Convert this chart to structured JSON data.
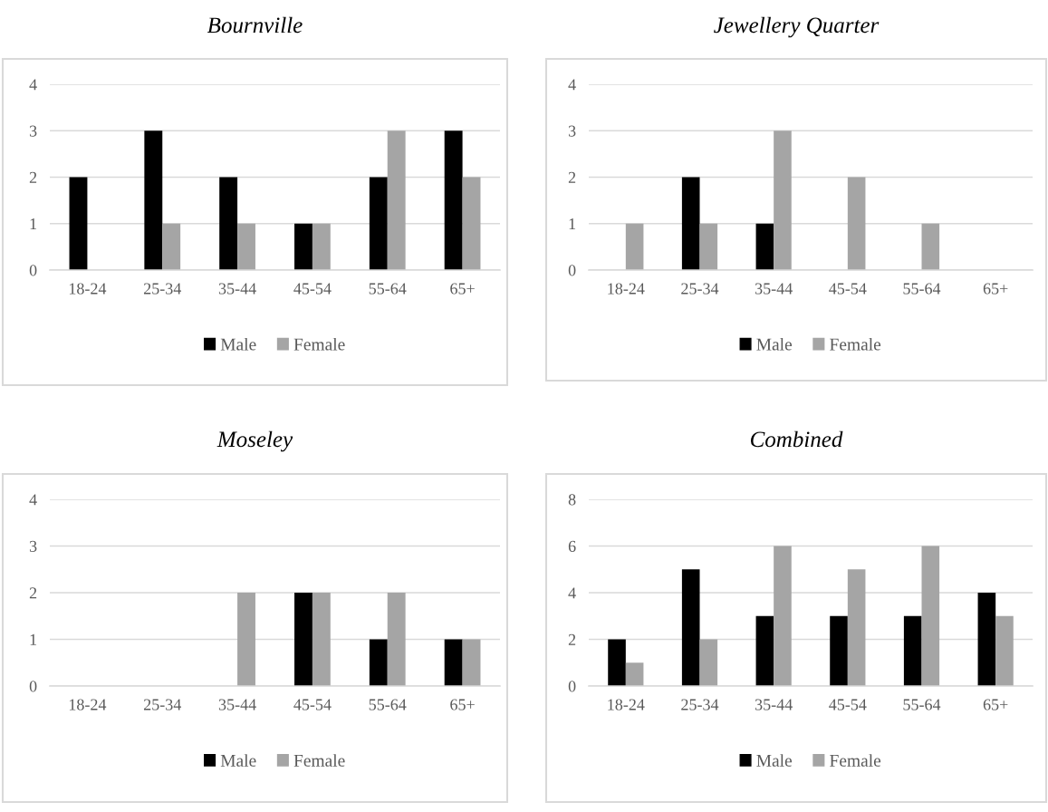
{
  "chart_data": [
    {
      "type": "bar",
      "title": "Bournville",
      "categories": [
        "18-24",
        "25-34",
        "35-44",
        "45-54",
        "55-64",
        "65+"
      ],
      "series": [
        {
          "name": "Male",
          "color": "#000000",
          "values": [
            2,
            3,
            2,
            1,
            2,
            3
          ]
        },
        {
          "name": "Female",
          "color": "#a5a5a5",
          "values": [
            0,
            1,
            1,
            1,
            3,
            2
          ]
        }
      ],
      "ylim": [
        0,
        4
      ],
      "yticks": [
        0,
        1,
        2,
        3,
        4
      ],
      "grid": "y",
      "legend": "bottom"
    },
    {
      "type": "bar",
      "title": "Jewellery Quarter",
      "categories": [
        "18-24",
        "25-34",
        "35-44",
        "45-54",
        "55-64",
        "65+"
      ],
      "series": [
        {
          "name": "Male",
          "color": "#000000",
          "values": [
            0,
            2,
            1,
            0,
            0,
            0
          ]
        },
        {
          "name": "Female",
          "color": "#a5a5a5",
          "values": [
            1,
            1,
            3,
            2,
            1,
            0
          ]
        }
      ],
      "ylim": [
        0,
        4
      ],
      "yticks": [
        0,
        1,
        2,
        3,
        4
      ],
      "grid": "y",
      "legend": "bottom"
    },
    {
      "type": "bar",
      "title": "Moseley",
      "categories": [
        "18-24",
        "25-34",
        "35-44",
        "45-54",
        "55-64",
        "65+"
      ],
      "series": [
        {
          "name": "Male",
          "color": "#000000",
          "values": [
            0,
            0,
            0,
            2,
            1,
            1
          ]
        },
        {
          "name": "Female",
          "color": "#a5a5a5",
          "values": [
            0,
            0,
            2,
            2,
            2,
            1
          ]
        }
      ],
      "ylim": [
        0,
        4
      ],
      "yticks": [
        0,
        1,
        2,
        3,
        4
      ],
      "grid": "y",
      "legend": "bottom"
    },
    {
      "type": "bar",
      "title": "Combined",
      "categories": [
        "18-24",
        "25-34",
        "35-44",
        "45-54",
        "55-64",
        "65+"
      ],
      "series": [
        {
          "name": "Male",
          "color": "#000000",
          "values": [
            2,
            5,
            3,
            3,
            3,
            4
          ]
        },
        {
          "name": "Female",
          "color": "#a5a5a5",
          "values": [
            1,
            2,
            6,
            5,
            6,
            3
          ]
        }
      ],
      "ylim": [
        0,
        8
      ],
      "yticks": [
        0,
        2,
        4,
        6,
        8
      ],
      "grid": "y",
      "legend": "bottom"
    }
  ]
}
